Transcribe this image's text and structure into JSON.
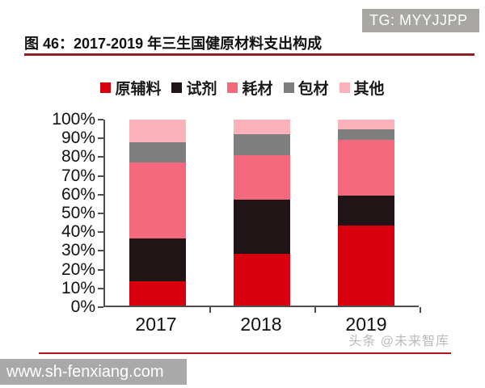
{
  "banner": {
    "text": "TG: MYYJJPP"
  },
  "figure": {
    "title": "图 46：2017-2019 年三生国健原材料支出构成"
  },
  "watermark": {
    "text": "头条 @未来智库"
  },
  "footer": {
    "url": "www.sh-fenxiang.com"
  },
  "colors": {
    "title_rule_dark_red": "#8a2025",
    "bottom_rule_red": "#b3131a",
    "banner_gray": "#a9a7a4",
    "footer_bar_gray": "#a9a9a9",
    "axis_gray": "#4f4f4f"
  },
  "chart_data": {
    "type": "bar",
    "stacked": true,
    "title": "2017-2019 年三生国健原材料支出构成",
    "categories": [
      "2017",
      "2018",
      "2019"
    ],
    "series": [
      {
        "name": "原辅料",
        "color": "#d8000f",
        "values": [
          13,
          28,
          43
        ]
      },
      {
        "name": "试剂",
        "color": "#211417",
        "values": [
          23,
          29,
          16
        ]
      },
      {
        "name": "耗材",
        "color": "#f4697c",
        "values": [
          41,
          24,
          30
        ]
      },
      {
        "name": "包材",
        "color": "#7e7e7e",
        "values": [
          11,
          11,
          6
        ]
      },
      {
        "name": "其他",
        "color": "#fbb2ba",
        "values": [
          12,
          8,
          5
        ]
      }
    ],
    "unit": "percent",
    "ylim": [
      0,
      100
    ],
    "yticks": [
      "0%",
      "10%",
      "20%",
      "30%",
      "40%",
      "50%",
      "60%",
      "70%",
      "80%",
      "90%",
      "100%"
    ],
    "xlabel": "",
    "ylabel": "",
    "legend_position": "top",
    "grid": false
  }
}
